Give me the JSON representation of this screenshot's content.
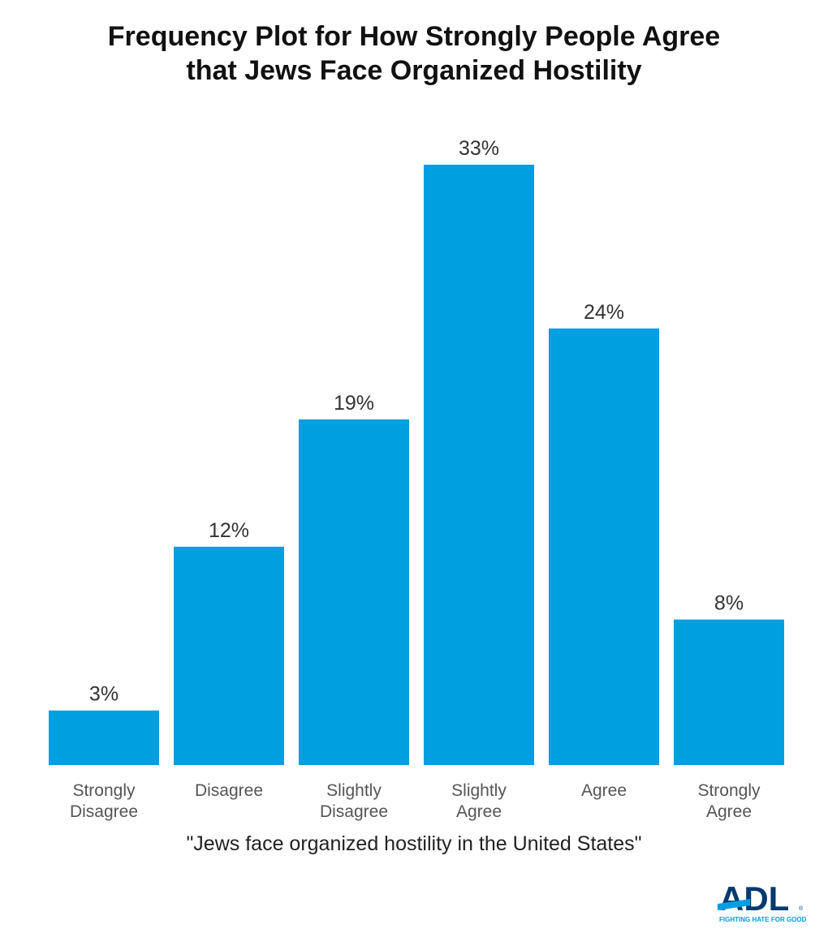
{
  "chart_data": {
    "type": "bar",
    "title_line1": "Frequency Plot for How Strongly People Agree",
    "title_line2": "that Jews Face Organized Hostility",
    "xlabel": "\"Jews face organized hostility in the United States\"",
    "categories": [
      "Strongly\nDisagree",
      "Disagree",
      "Slightly\nDisagree",
      "Slightly\nAgree",
      "Agree",
      "Strongly\nAgree"
    ],
    "values": [
      3,
      12,
      19,
      33,
      24,
      8
    ],
    "data_labels": [
      "3%",
      "12%",
      "19%",
      "33%",
      "24%",
      "8%"
    ],
    "ylim": [
      0,
      33
    ],
    "grid": false,
    "bar_color": "#009fdf"
  },
  "logo": {
    "text": "ADL",
    "tagline": "FIGHTING HATE FOR GOOD",
    "color": "#003a70",
    "accent": "#009fdf"
  }
}
